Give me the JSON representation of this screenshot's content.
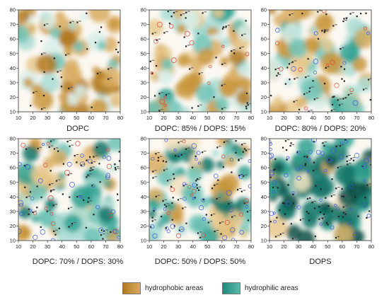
{
  "chart_data": [
    {
      "type": "heatmap",
      "title": "DOPC",
      "xlim": [
        10,
        80
      ],
      "ylim": [
        10,
        80
      ],
      "xticks": [
        10,
        20,
        30,
        40,
        50,
        60,
        70,
        80
      ],
      "yticks": [
        10,
        20,
        30,
        40,
        50,
        60,
        70,
        80
      ],
      "grid": false
    },
    {
      "type": "heatmap",
      "title": "DOPC: 85% / DOPS: 15%",
      "xlim": [
        10,
        80
      ],
      "ylim": [
        10,
        80
      ],
      "xticks": [
        10,
        20,
        30,
        40,
        50,
        60,
        70,
        80
      ],
      "yticks": [
        10,
        20,
        30,
        40,
        50,
        60,
        70,
        80
      ],
      "grid": false
    },
    {
      "type": "heatmap",
      "title": "DOPC: 80% / DOPS: 20%",
      "xlim": [
        10,
        80
      ],
      "ylim": [
        10,
        80
      ],
      "xticks": [
        10,
        20,
        30,
        40,
        50,
        60,
        70,
        80
      ],
      "yticks": [
        10,
        20,
        30,
        40,
        50,
        60,
        70,
        80
      ],
      "grid": false
    },
    {
      "type": "heatmap",
      "title": "DOPC: 70% / DOPS: 30%",
      "xlim": [
        10,
        80
      ],
      "ylim": [
        10,
        80
      ],
      "xticks": [
        10,
        20,
        30,
        40,
        50,
        60,
        70,
        80
      ],
      "yticks": [
        10,
        20,
        30,
        40,
        50,
        60,
        70,
        80
      ],
      "grid": false
    },
    {
      "type": "heatmap",
      "title": "DOPC: 50% / DOPS: 50%",
      "xlim": [
        10,
        80
      ],
      "ylim": [
        10,
        80
      ],
      "xticks": [
        10,
        20,
        30,
        40,
        50,
        60,
        70,
        80
      ],
      "yticks": [
        10,
        20,
        30,
        40,
        50,
        60,
        70,
        80
      ],
      "grid": false
    },
    {
      "type": "heatmap",
      "title": "DOPS",
      "xlim": [
        10,
        80
      ],
      "ylim": [
        10,
        80
      ],
      "xticks": [
        10,
        20,
        30,
        40,
        50,
        60,
        70,
        80
      ],
      "yticks": [
        10,
        20,
        30,
        40,
        50,
        60,
        70,
        80
      ],
      "grid": false
    }
  ],
  "legend": [
    {
      "label": "hydrophobic areas",
      "color": "#c8953a"
    },
    {
      "label": "hydrophilic  areas",
      "color": "#2a9d8f"
    }
  ]
}
